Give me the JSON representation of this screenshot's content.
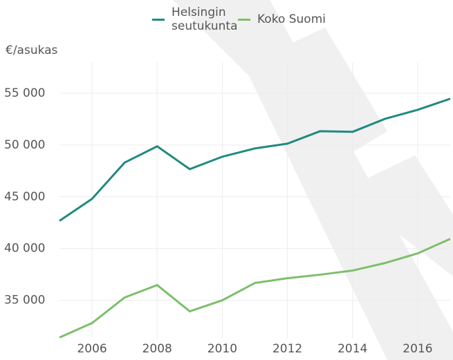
{
  "chart_data": {
    "type": "line",
    "y_label": "€/asukas",
    "x": [
      2005,
      2006,
      2007,
      2008,
      2009,
      2010,
      2011,
      2012,
      2013,
      2014,
      2015,
      2016,
      2017
    ],
    "series": [
      {
        "name": "Helsingin seutukunta",
        "color": "#1f8a80",
        "values": [
          42670,
          44800,
          48300,
          49870,
          47670,
          48870,
          49670,
          50130,
          51330,
          51270,
          52530,
          53400,
          54470
        ]
      },
      {
        "name": "Koko Suomi",
        "color": "#7cbf6b",
        "values": [
          31400,
          32800,
          35270,
          36470,
          33930,
          35000,
          36670,
          37130,
          37470,
          37870,
          38600,
          39530,
          40930
        ]
      }
    ],
    "xlim": [
      2005,
      2017
    ],
    "xticks": [
      2006,
      2008,
      2010,
      2012,
      2014,
      2016
    ],
    "ylim": [
      31300,
      58000
    ],
    "yticks": [
      {
        "value": 35000,
        "label": "35 000"
      },
      {
        "value": 40000,
        "label": "40 000"
      },
      {
        "value": 45000,
        "label": "45 000"
      },
      {
        "value": 50000,
        "label": "50 000"
      },
      {
        "value": 55000,
        "label": "55 000"
      }
    ],
    "grid": true
  }
}
